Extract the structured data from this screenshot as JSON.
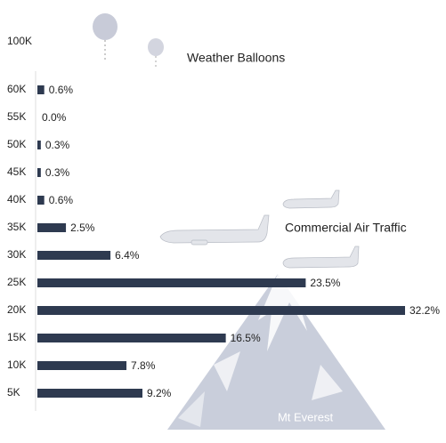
{
  "chart_data": {
    "type": "bar",
    "orientation": "horizontal",
    "categories": [
      "100K",
      "60K",
      "55K",
      "50K",
      "45K",
      "40K",
      "35K",
      "30K",
      "25K",
      "20K",
      "15K",
      "10K",
      "5K"
    ],
    "values": [
      null,
      0.6,
      0.0,
      0.3,
      0.3,
      0.6,
      2.5,
      6.4,
      23.5,
      32.2,
      16.5,
      7.8,
      9.2
    ],
    "value_labels": [
      null,
      "0.6%",
      "0.0%",
      "0.3%",
      "0.3%",
      "0.6%",
      "2.5%",
      "6.4%",
      "23.5%",
      "32.2%",
      "16.5%",
      "7.8%",
      "9.2%"
    ],
    "color": "#2e3a50",
    "annotations": [
      "Weather Balloons",
      "Commercial Air Traffic",
      "Mt Everest"
    ]
  }
}
